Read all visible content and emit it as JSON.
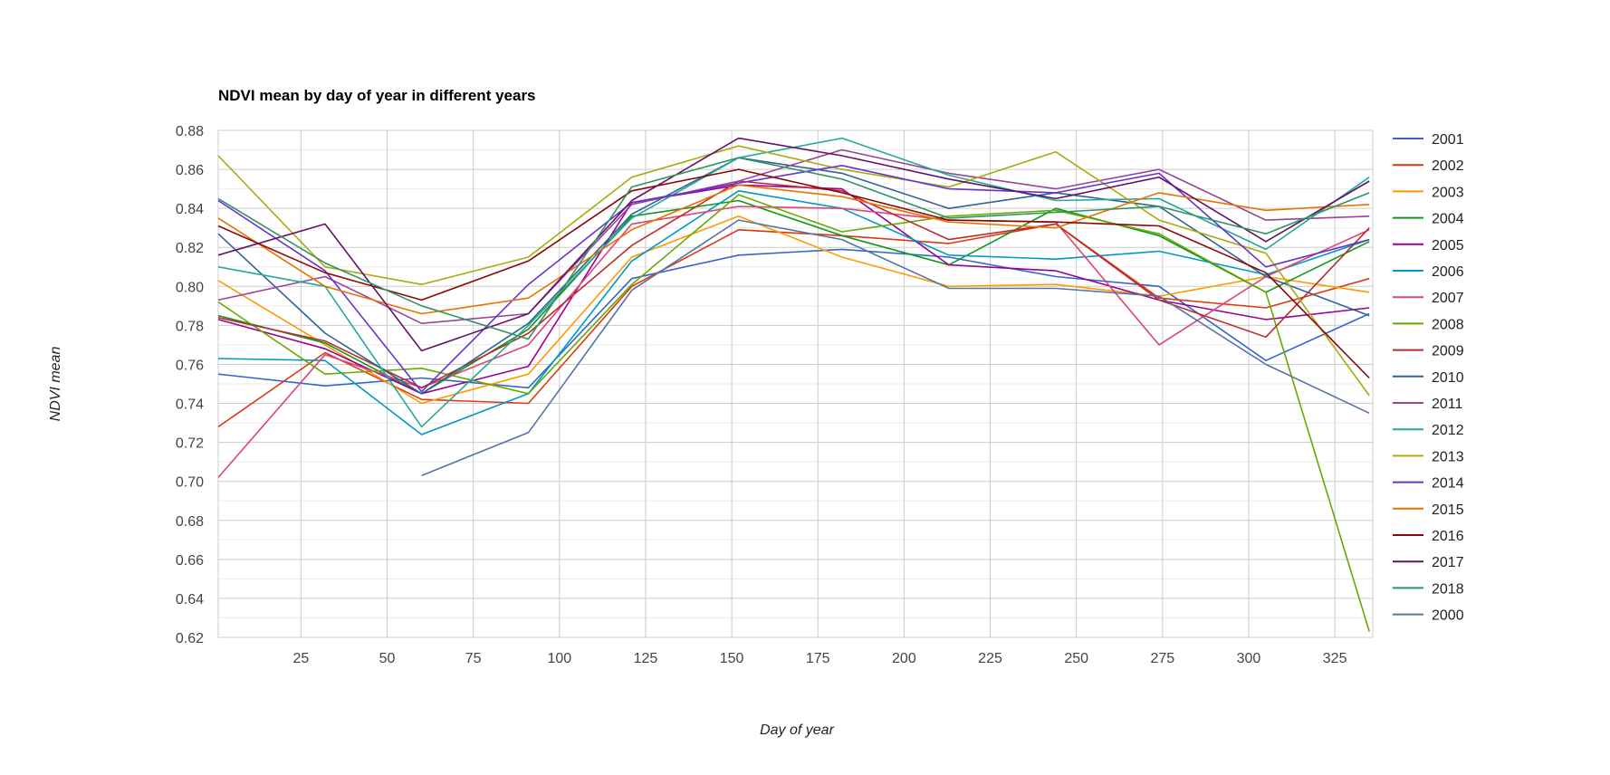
{
  "chart_data": {
    "type": "line",
    "title": "NDVI mean by day of year in different years",
    "xlabel": "Day of year",
    "ylabel": "NDVI mean",
    "x": [
      1,
      32,
      60,
      91,
      121,
      152,
      182,
      213,
      244,
      274,
      305,
      335
    ],
    "x_ticks": [
      25,
      50,
      75,
      100,
      125,
      150,
      175,
      200,
      225,
      250,
      275,
      300,
      325
    ],
    "y_ticks": [
      0.62,
      0.64,
      0.66,
      0.68,
      0.7,
      0.72,
      0.74,
      0.76,
      0.78,
      0.8,
      0.82,
      0.84,
      0.86,
      0.88
    ],
    "y_tick_labels": [
      "0.62",
      "0.64",
      "0.66",
      "0.68",
      "0.70",
      "0.72",
      "0.74",
      "0.76",
      "0.78",
      "0.80",
      "0.82",
      "0.84",
      "0.86",
      "0.88"
    ],
    "xlim": [
      1,
      336
    ],
    "ylim": [
      0.62,
      0.88
    ],
    "grid": true,
    "legend_position": "right",
    "series": [
      {
        "name": "2001",
        "color": "#3366cc",
        "values": [
          0.755,
          0.749,
          0.753,
          0.748,
          0.804,
          0.816,
          0.819,
          0.815,
          0.805,
          0.8,
          0.762,
          0.786
        ]
      },
      {
        "name": "2002",
        "color": "#dc3912",
        "values": [
          0.728,
          0.766,
          0.742,
          0.74,
          0.8,
          0.829,
          0.826,
          0.822,
          0.832,
          0.794,
          0.789,
          0.804
        ]
      },
      {
        "name": "2003",
        "color": "#ff9900",
        "values": [
          0.803,
          0.77,
          0.74,
          0.755,
          0.815,
          0.836,
          0.815,
          0.8,
          0.801,
          0.795,
          0.805,
          0.797
        ]
      },
      {
        "name": "2004",
        "color": "#109618",
        "values": [
          0.785,
          0.771,
          0.745,
          0.778,
          0.836,
          0.844,
          0.826,
          0.811,
          0.84,
          0.826,
          0.797,
          0.823
        ]
      },
      {
        "name": "2005",
        "color": "#990099",
        "values": [
          0.783,
          0.768,
          0.745,
          0.759,
          0.843,
          0.852,
          0.85,
          0.811,
          0.808,
          0.793,
          0.783,
          0.789
        ]
      },
      {
        "name": "2006",
        "color": "#0099c6",
        "values": [
          0.763,
          0.762,
          0.724,
          0.745,
          0.813,
          0.849,
          0.84,
          0.816,
          0.814,
          0.818,
          0.806,
          0.824
        ]
      },
      {
        "name": "2007",
        "color": "#dd4477",
        "values": [
          0.702,
          0.765,
          0.748,
          0.77,
          0.832,
          0.841,
          0.84,
          0.834,
          0.833,
          0.77,
          0.805,
          0.829
        ]
      },
      {
        "name": "2008",
        "color": "#66aa00",
        "values": [
          0.792,
          0.755,
          0.758,
          0.745,
          0.801,
          0.847,
          0.828,
          0.836,
          0.839,
          0.827,
          0.797,
          0.623
        ]
      },
      {
        "name": "2009",
        "color": "#b82e2e",
        "values": [
          0.784,
          0.772,
          0.748,
          0.776,
          0.821,
          0.854,
          0.849,
          0.824,
          0.832,
          0.793,
          0.774,
          0.83
        ]
      },
      {
        "name": "2010",
        "color": "#316395",
        "values": [
          0.827,
          0.776,
          0.745,
          0.781,
          0.837,
          0.866,
          0.858,
          0.84,
          0.848,
          0.841,
          0.805,
          0.785
        ]
      },
      {
        "name": "2011",
        "color": "#994499",
        "values": [
          0.793,
          0.805,
          0.781,
          0.786,
          0.842,
          0.854,
          0.87,
          0.858,
          0.85,
          0.86,
          0.834,
          0.836
        ]
      },
      {
        "name": "2012",
        "color": "#22aa99",
        "values": [
          0.81,
          0.8,
          0.728,
          0.78,
          0.835,
          0.866,
          0.876,
          0.857,
          0.844,
          0.845,
          0.819,
          0.856
        ]
      },
      {
        "name": "2013",
        "color": "#aaaa11",
        "values": [
          0.867,
          0.81,
          0.801,
          0.815,
          0.856,
          0.872,
          0.86,
          0.851,
          0.869,
          0.834,
          0.817,
          0.744
        ]
      },
      {
        "name": "2014",
        "color": "#6633cc",
        "values": [
          0.844,
          0.808,
          0.746,
          0.801,
          0.843,
          0.853,
          0.862,
          0.85,
          0.848,
          0.858,
          0.81,
          0.824
        ]
      },
      {
        "name": "2015",
        "color": "#e67300",
        "values": [
          0.835,
          0.8,
          0.786,
          0.794,
          0.829,
          0.852,
          0.846,
          0.833,
          0.83,
          0.848,
          0.839,
          0.842
        ]
      },
      {
        "name": "2016",
        "color": "#8b0707",
        "values": [
          0.831,
          0.807,
          0.793,
          0.813,
          0.849,
          0.86,
          0.848,
          0.834,
          0.833,
          0.831,
          0.807,
          0.753
        ]
      },
      {
        "name": "2017",
        "color": "#651067",
        "values": [
          0.816,
          0.832,
          0.767,
          0.786,
          0.844,
          0.876,
          0.867,
          0.855,
          0.845,
          0.856,
          0.823,
          0.854
        ]
      },
      {
        "name": "2018",
        "color": "#329262",
        "values": [
          0.845,
          0.812,
          0.79,
          0.773,
          0.851,
          0.866,
          0.855,
          0.835,
          0.838,
          0.841,
          0.827,
          0.848
        ]
      },
      {
        "name": "2000",
        "color": "#5574a6",
        "values": [
          null,
          null,
          0.703,
          0.725,
          0.798,
          0.834,
          0.824,
          0.799,
          0.799,
          0.795,
          0.76,
          0.735
        ]
      }
    ]
  }
}
